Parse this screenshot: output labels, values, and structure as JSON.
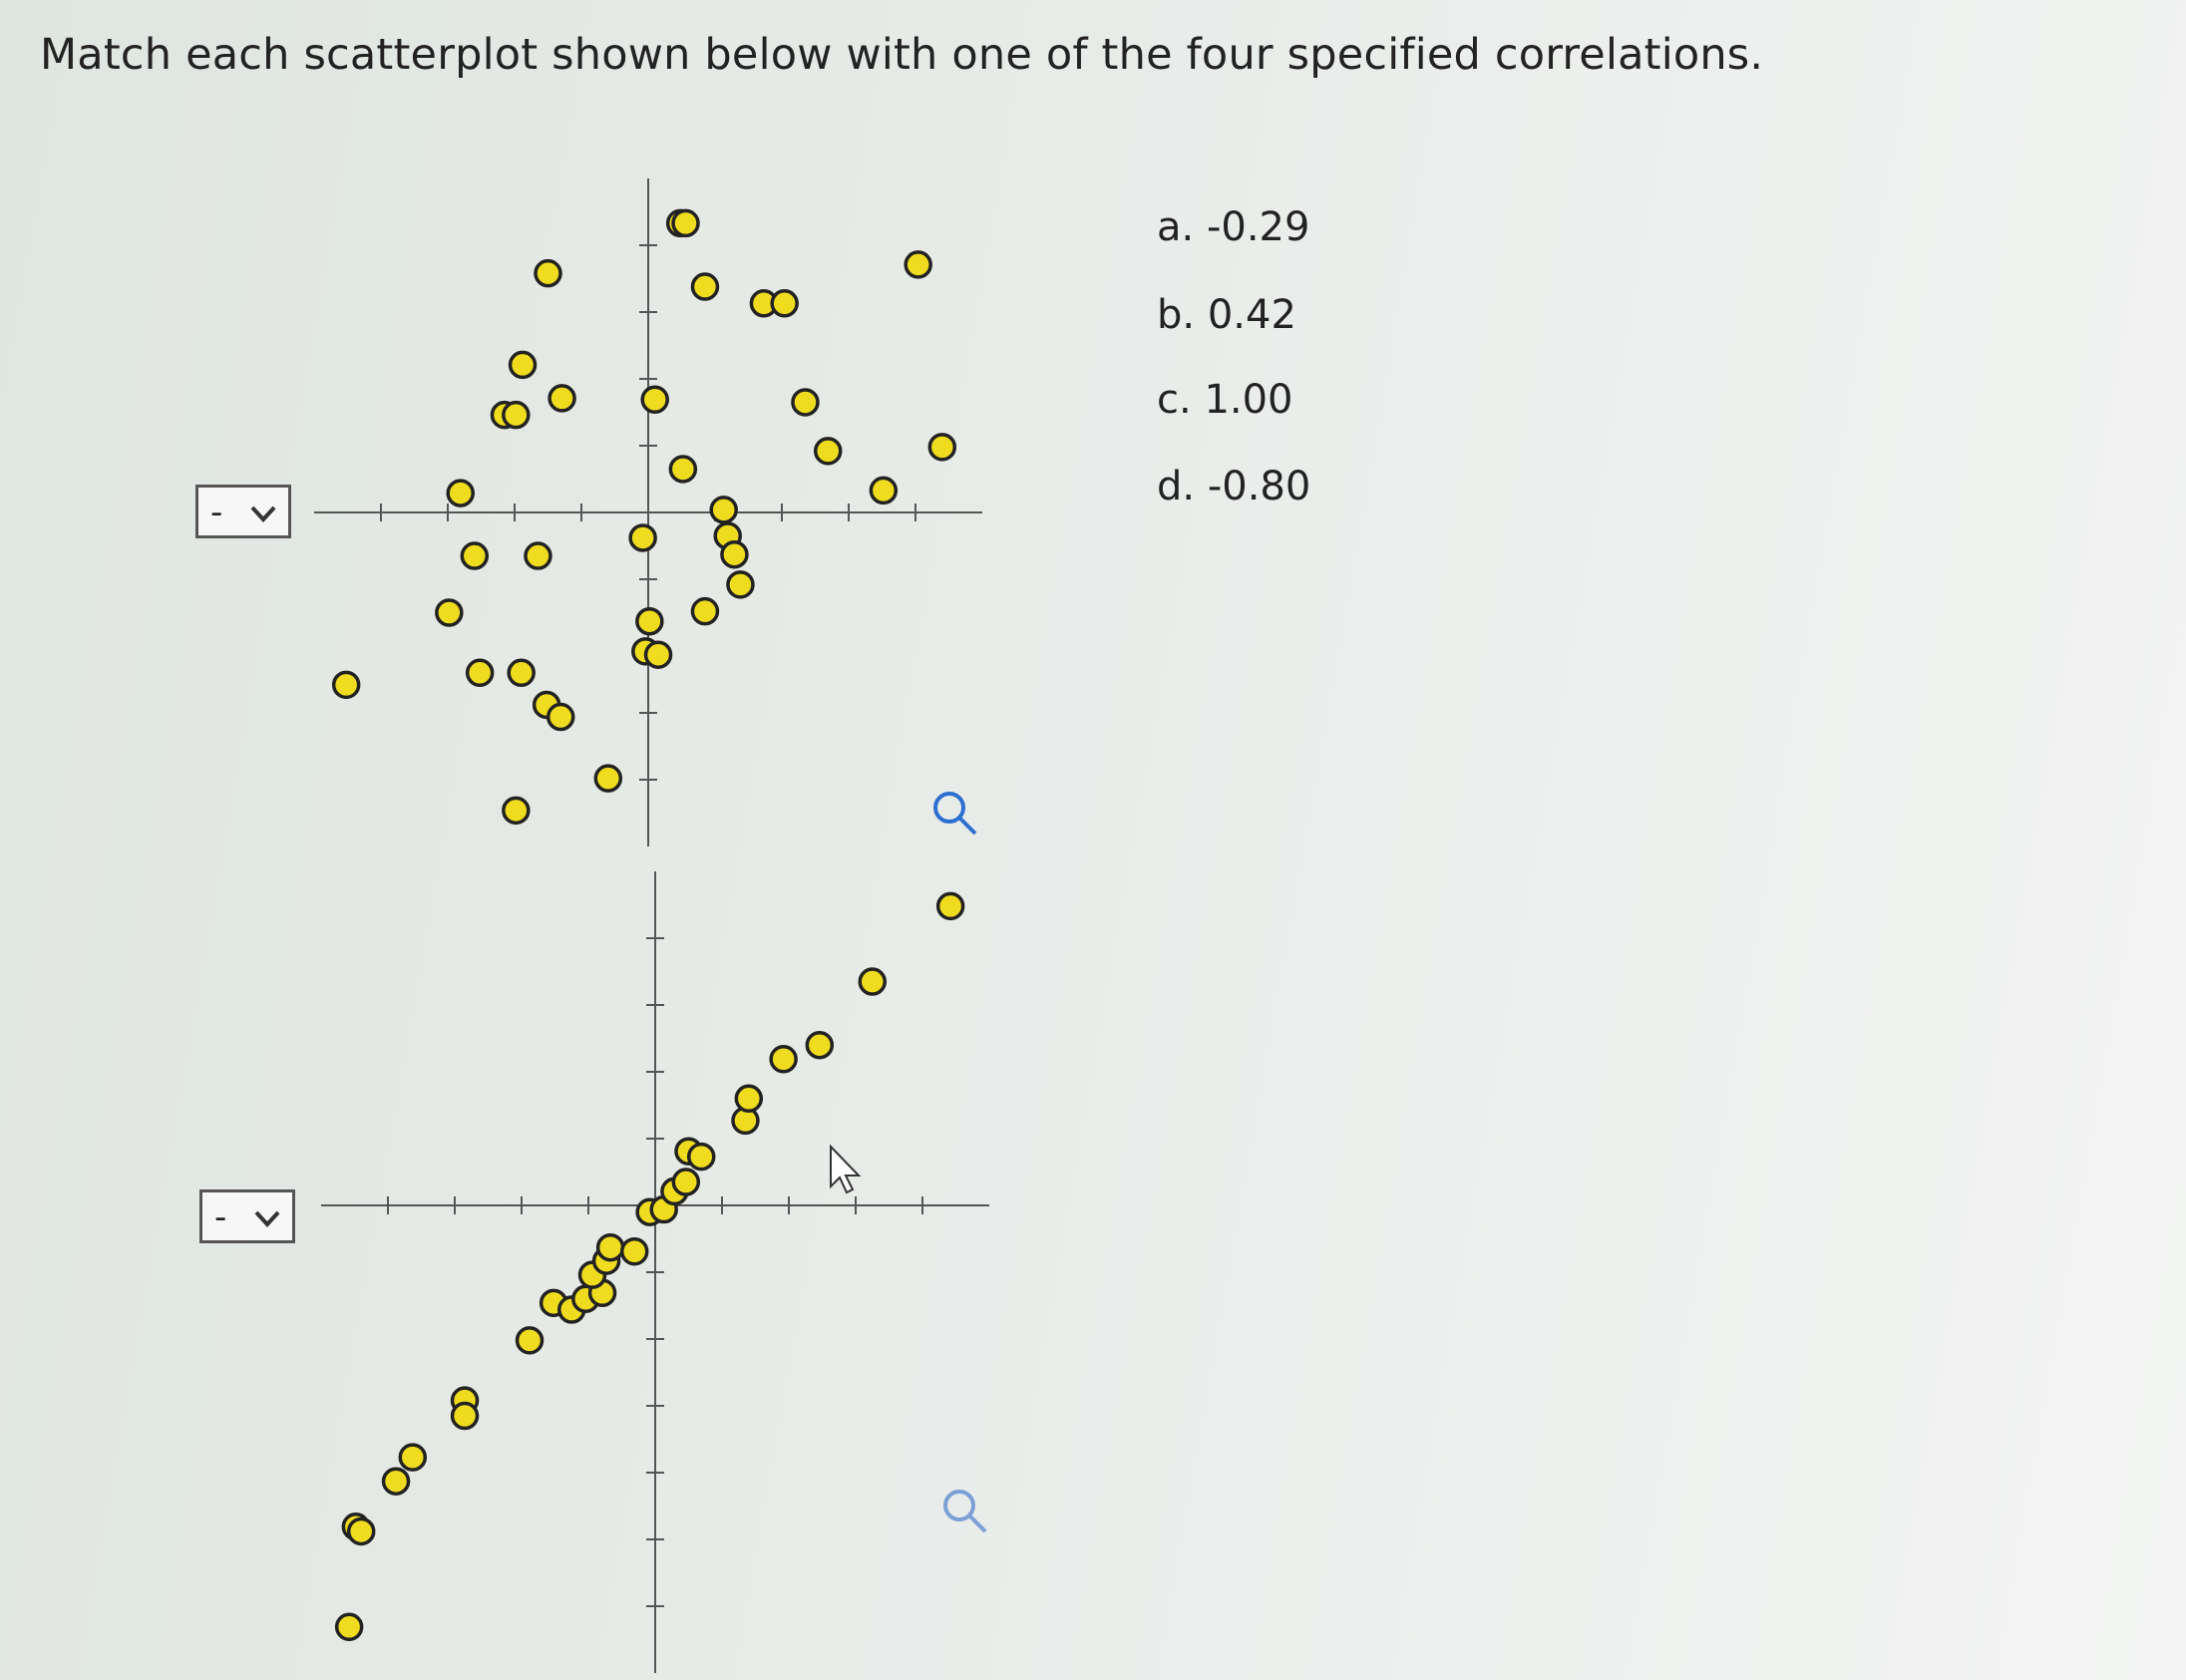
{
  "title": "Match each scatterplot shown below with one of the four specified correlations.",
  "dropdowns": [
    "-",
    "-"
  ],
  "options": [
    {
      "letter": "a.",
      "value": "-0.29"
    },
    {
      "letter": "b.",
      "value": "0.42"
    },
    {
      "letter": "c.",
      "value": "1.00"
    },
    {
      "letter": "d.",
      "value": "-0.80"
    }
  ],
  "chart_data": [
    {
      "type": "scatter",
      "color": "#f0dc1e",
      "x": [
        -4.52,
        -1.5,
        -1.88,
        -2.15,
        -1.98,
        -1.29,
        -2.81,
        -2.6,
        -1.65,
        -2.98,
        -2.52,
        -1.9,
        -1.52,
        -1.31,
        -1.98,
        -0.6,
        -0.08,
        0.02,
        -0.04,
        0.15,
        0.48,
        0.56,
        0.85,
        1.73,
        2.04,
        4.04,
        0.1,
        0.52,
        1.13,
        1.19,
        1.29,
        1.38,
        0.85,
        2.35,
        2.69,
        3.52,
        4.4
      ],
      "y": [
        -2.58,
        3.58,
        2.21,
        1.46,
        1.46,
        1.71,
        0.29,
        -0.65,
        -0.65,
        -1.5,
        -2.4,
        -2.4,
        -2.88,
        -3.06,
        -4.46,
        -3.98,
        -0.38,
        -1.63,
        -2.08,
        -2.13,
        4.33,
        4.33,
        3.38,
        3.13,
        3.13,
        3.71,
        1.69,
        0.65,
        0.04,
        -0.35,
        -0.63,
        -1.08,
        -1.48,
        1.65,
        0.92,
        0.33,
        0.98
      ],
      "xlim": [
        -5,
        5
      ],
      "ylim": [
        -5,
        5
      ],
      "xticks": [
        -4,
        -3,
        -2,
        -1,
        0,
        1,
        2,
        3,
        4
      ],
      "yticks": [
        -4,
        -3,
        -2,
        -1,
        0,
        1,
        2,
        3,
        4
      ]
    },
    {
      "type": "scatter",
      "color": "#f0dc1e",
      "x": [
        -4.58,
        -4.48,
        -4.4,
        -3.88,
        -3.63,
        -2.85,
        -2.85,
        -1.88,
        -1.52,
        -1.25,
        -1.04,
        -0.79,
        -0.94,
        -0.73,
        -0.67,
        -0.31,
        -0.08,
        0.13,
        0.29,
        0.46,
        0.5,
        0.69,
        1.35,
        1.4,
        1.92,
        2.46,
        3.25,
        4.42
      ],
      "y": [
        -6.31,
        -4.81,
        -4.88,
        -4.13,
        -3.77,
        -2.92,
        -3.15,
        -2.02,
        -1.46,
        -1.56,
        -1.4,
        -1.31,
        -1.04,
        -0.83,
        -0.63,
        -0.69,
        -0.1,
        -0.06,
        0.21,
        0.35,
        0.81,
        0.73,
        1.27,
        1.6,
        2.19,
        2.4,
        3.35,
        4.48
      ],
      "xlim": [
        -5,
        5
      ],
      "ylim": [
        -7,
        5
      ],
      "xticks": [
        -4,
        -3,
        -2,
        -1,
        0,
        1,
        2,
        3,
        4
      ],
      "yticks": [
        -6,
        -5,
        -4,
        -3,
        -2,
        -1,
        0,
        1,
        2,
        3,
        4
      ]
    }
  ]
}
